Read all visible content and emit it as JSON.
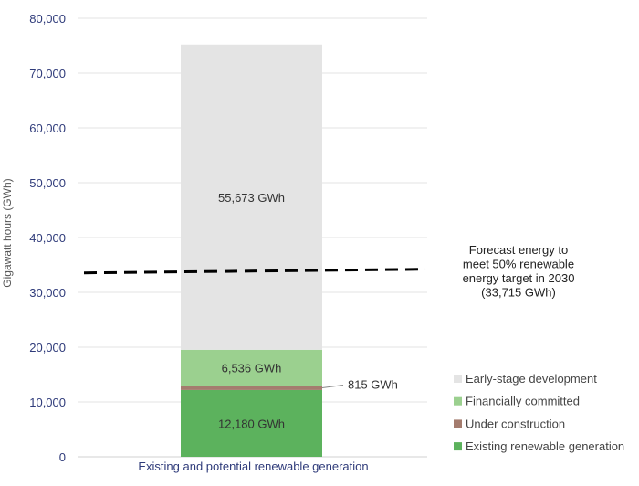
{
  "chart_data": {
    "type": "bar",
    "stacked": true,
    "categories": [
      "Existing and potential renewable generation"
    ],
    "series": [
      {
        "name": "Existing renewable generation",
        "values": [
          12180
        ],
        "color": "#5cb25d",
        "label": "12,180 GWh"
      },
      {
        "name": "Under construction",
        "values": [
          815
        ],
        "color": "#a47c6e",
        "label": "815 GWh"
      },
      {
        "name": "Financially committed",
        "values": [
          6536
        ],
        "color": "#9bd08f",
        "label": "6,536 GWh"
      },
      {
        "name": "Early-stage development",
        "values": [
          55673
        ],
        "color": "#e4e4e4",
        "label": "55,673 GWh"
      }
    ],
    "ylabel": "Gigawatt hours (GWh)",
    "ylim": [
      0,
      80000
    ],
    "yticks": [
      0,
      10000,
      20000,
      30000,
      40000,
      50000,
      60000,
      70000,
      80000
    ],
    "ytick_labels": [
      "0",
      "10,000",
      "20,000",
      "30,000",
      "40,000",
      "50,000",
      "60,000",
      "70,000",
      "80,000"
    ],
    "gridlines": true,
    "legend_position": "bottom-right",
    "reference_line": {
      "value": 33715,
      "style": "dashed",
      "color": "#000000",
      "label_lines": [
        "Forecast energy to",
        "meet 50% renewable",
        "energy target in 2030",
        "(33,715 GWh)"
      ]
    }
  }
}
